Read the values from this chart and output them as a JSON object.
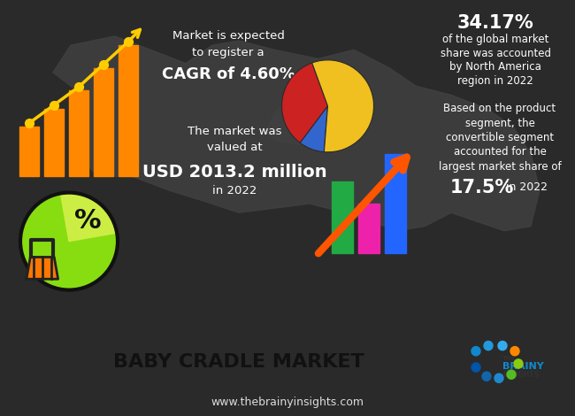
{
  "bg_color": "#2a2a2a",
  "footer_white_bg": "#ffffff",
  "footer_dark_bg": "#3a3a3a",
  "title": "BABY CRADLE MARKET",
  "website": "www.thebrainyinsights.com",
  "cagr_text_line1": "Market is expected",
  "cagr_text_line2": "to register a",
  "cagr_highlight": "CAGR of 4.60%",
  "pie1_slices": [
    34.17,
    9,
    56.83
  ],
  "pie1_colors": [
    "#cc2222",
    "#3366cc",
    "#f0c020"
  ],
  "north_america_pct": "34.17%",
  "na_text_line1": "of the global market",
  "na_text_line2": "share was accounted",
  "na_text_line3": "by North America",
  "na_text_line4": "region in 2022",
  "market_val_line1": "The market was",
  "market_val_line2": "valued at",
  "market_val_highlight": "USD 2013.2 million",
  "market_val_line3": "in 2022",
  "product_text_line1": "Based on the product",
  "product_text_line2": "segment, the",
  "product_text_line3": "convertible segment",
  "product_text_line4": "accounted for the",
  "product_text_line5": "largest market share of",
  "product_highlight": "17.5%",
  "product_year": " in 2022",
  "bar1_color": "#ff8800",
  "bar1_line_color": "#ffcc00",
  "bar2_colors": [
    "#22aa44",
    "#ee22aa",
    "#2266ff"
  ],
  "arrow_color": "#ff5500",
  "pie2_colors": [
    "#88dd11",
    "#ccee44"
  ],
  "basket_color": "#ff7700",
  "basket_outline": "#222222"
}
